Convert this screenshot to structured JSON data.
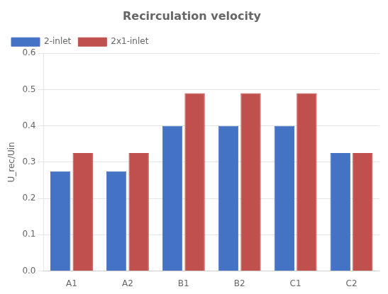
{
  "chart_data": {
    "type": "bar",
    "title": "Recirculation velocity",
    "ylabel": "U_rec/Uin",
    "categories": [
      "A1",
      "A2",
      "B1",
      "B2",
      "C1",
      "C2"
    ],
    "series": [
      {
        "name": "2-inlet",
        "color": "#4472C4",
        "values": [
          0.275,
          0.275,
          0.4,
          0.4,
          0.4,
          0.325
        ]
      },
      {
        "name": "2x1-inlet",
        "color": "#C0504D",
        "values": [
          0.325,
          0.325,
          0.49,
          0.49,
          0.49,
          0.325
        ]
      }
    ],
    "ylim": [
      0.0,
      0.6
    ],
    "yticks": [
      {
        "value": 0,
        "label": "0.0"
      },
      0.1,
      0.2,
      0.3,
      0.4,
      0.5,
      0.6
    ],
    "grid": true,
    "legend": "upper left"
  }
}
